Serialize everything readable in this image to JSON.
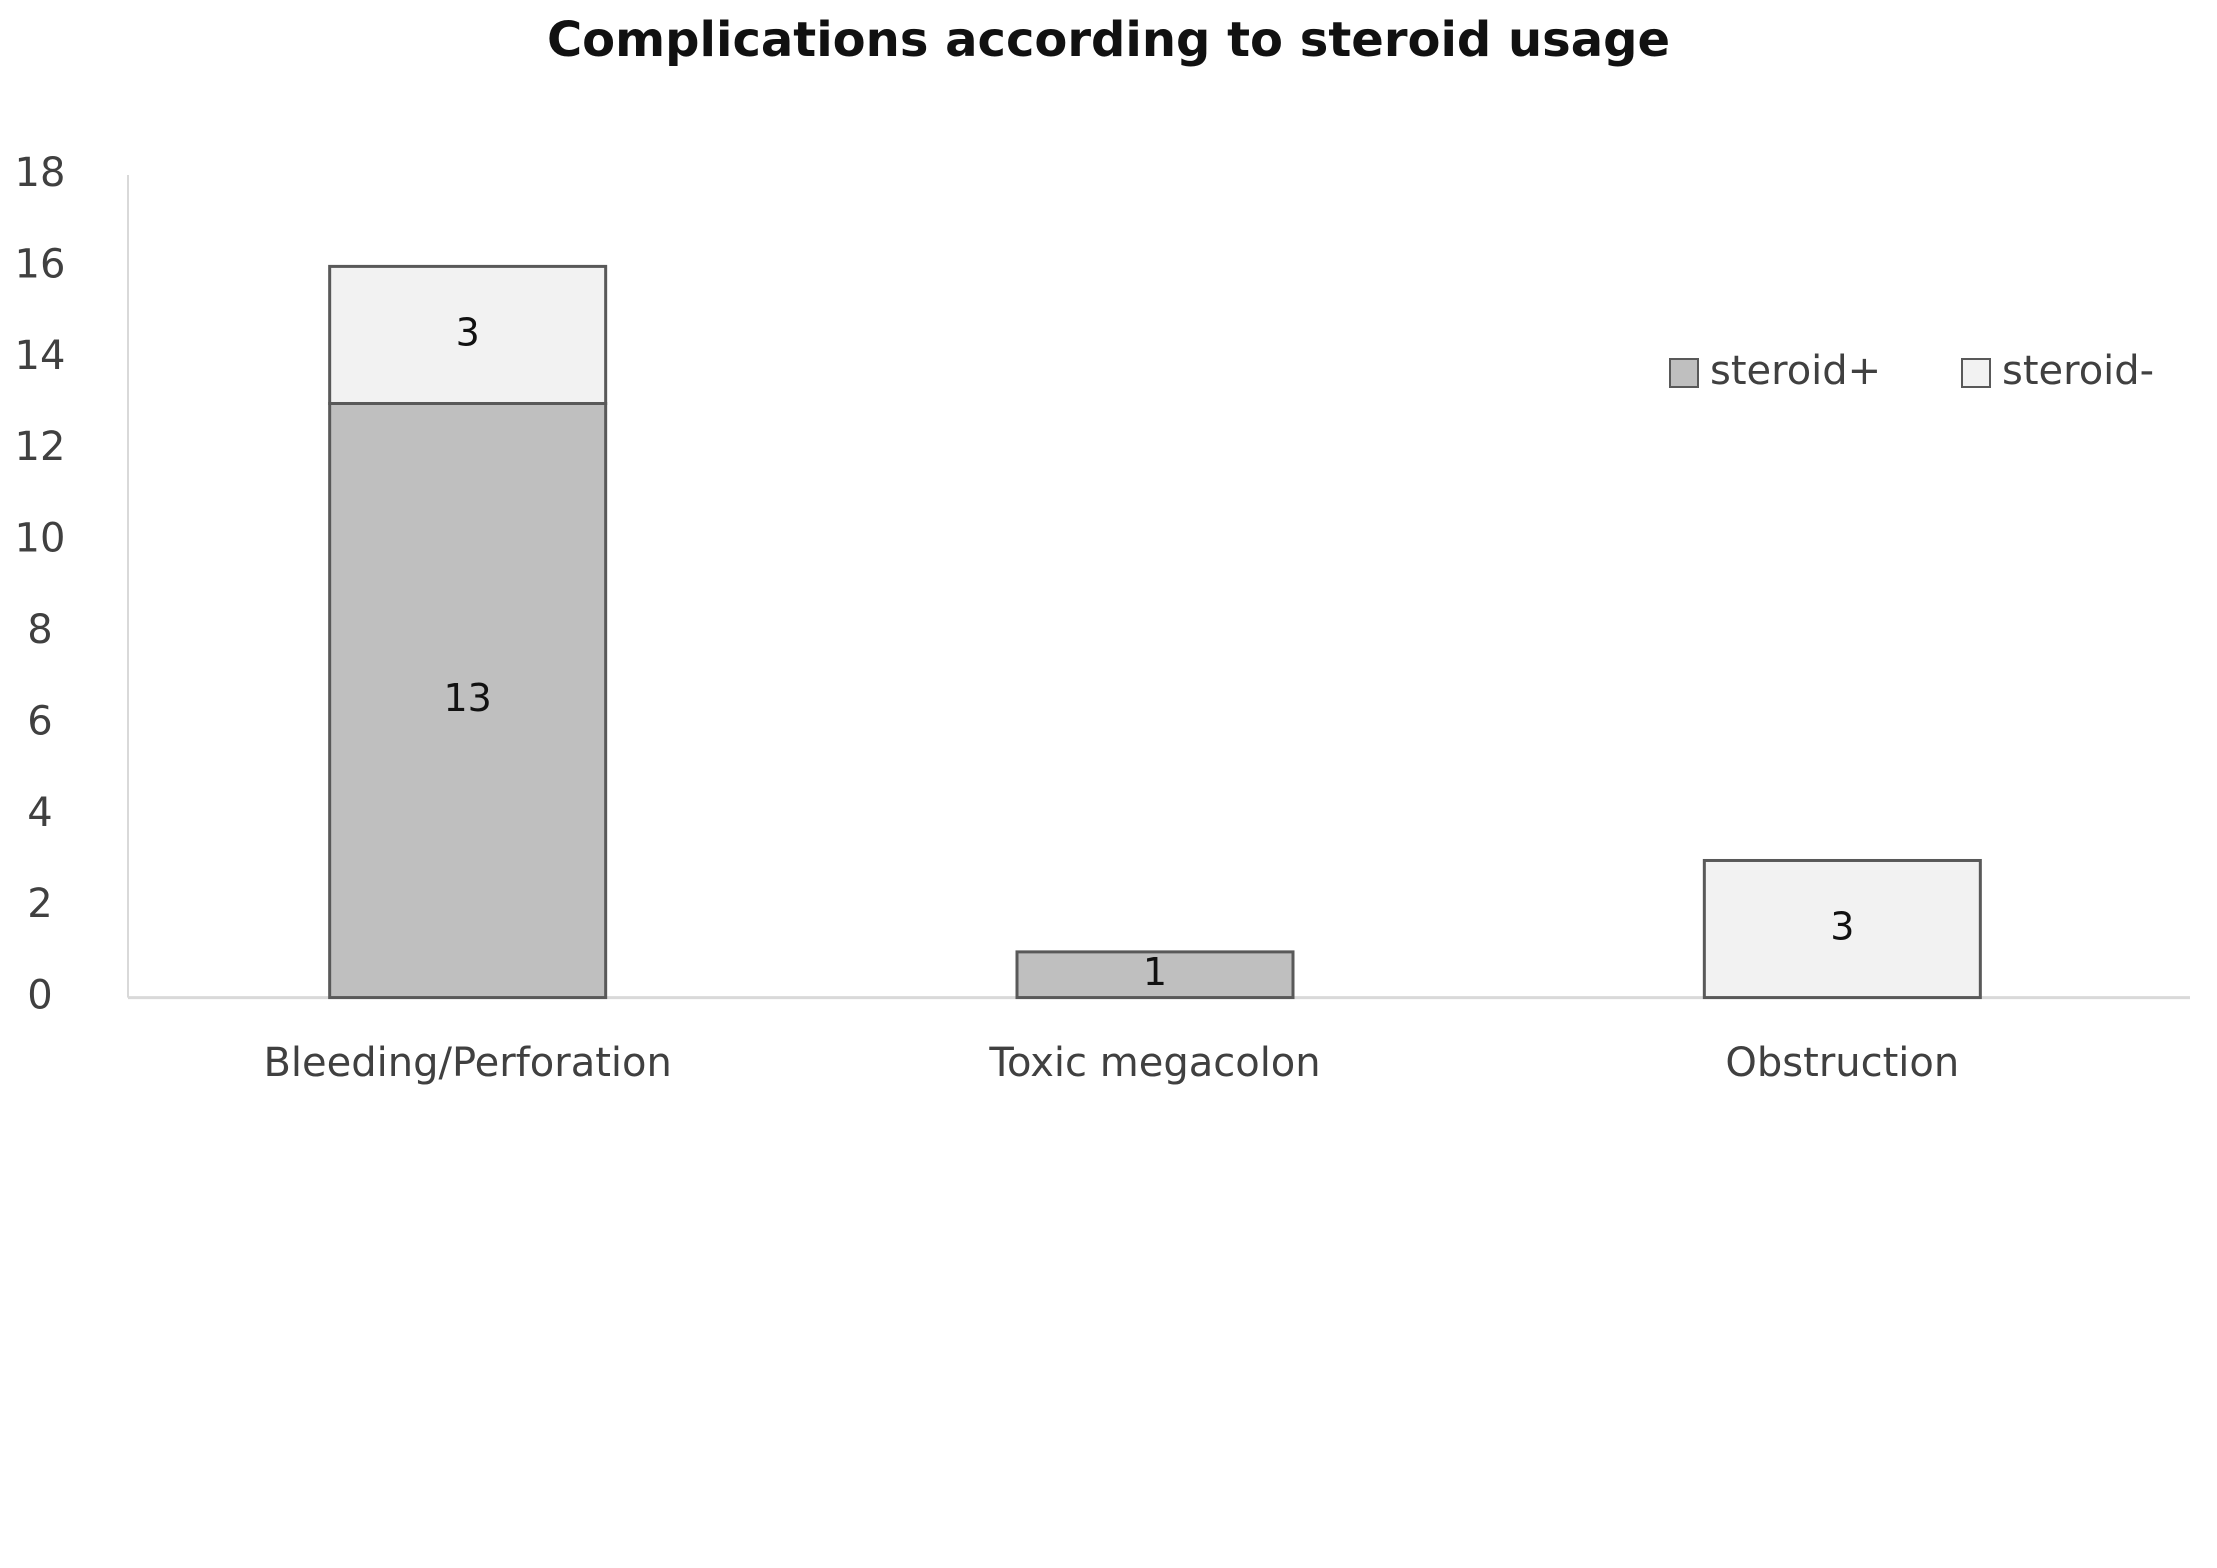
{
  "chart_data": {
    "type": "bar",
    "stacked": true,
    "title": "Complications according to steroid usage",
    "xlabel": "",
    "ylabel": "",
    "categories": [
      "Bleeding/Perforation",
      "Toxic megacolon",
      "Obstruction"
    ],
    "series": [
      {
        "name": "steroid+",
        "values": [
          13,
          1,
          0
        ],
        "labels": [
          "13",
          "1",
          ""
        ],
        "color": "#bfbfbf"
      },
      {
        "name": "steroid-",
        "values": [
          3,
          0,
          3
        ],
        "labels": [
          "3",
          "",
          "3"
        ],
        "color": "#f2f2f2"
      }
    ],
    "ylim": [
      0,
      18
    ],
    "yticks": [
      "0",
      "2",
      "4",
      "6",
      "8",
      "10",
      "12",
      "14",
      "16",
      "18"
    ],
    "grid": false,
    "legend": "right",
    "colors": {
      "bar_outline": "#595959",
      "axis_line": "#d9d9d9",
      "tick_text": "#404040",
      "data_label": "#111111"
    }
  }
}
